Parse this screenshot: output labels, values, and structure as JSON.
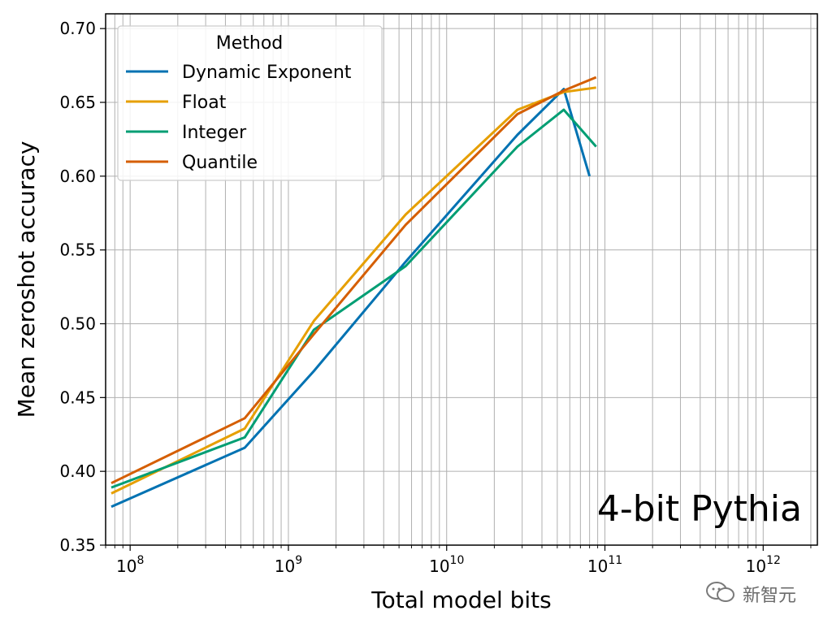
{
  "chart_data": {
    "type": "line",
    "xlabel": "Total model bits",
    "ylabel": "Mean zeroshot accuracy",
    "xscale": "log",
    "ylim": [
      0.35,
      0.71
    ],
    "yticks": [
      0.35,
      0.4,
      0.45,
      0.5,
      0.55,
      0.6,
      0.65,
      0.7
    ],
    "ytick_labels": [
      "0.35",
      "0.40",
      "0.45",
      "0.50",
      "0.55",
      "0.60",
      "0.65",
      "0.70"
    ],
    "xticks": [
      100000000,
      1000000000,
      10000000000,
      100000000000,
      1000000000000
    ],
    "xtick_labels": [
      {
        "base": "10",
        "exp": "8"
      },
      {
        "base": "10",
        "exp": "9"
      },
      {
        "base": "10",
        "exp": "10"
      },
      {
        "base": "10",
        "exp": "11"
      },
      {
        "base": "10",
        "exp": "12"
      }
    ],
    "grid": true,
    "legend": {
      "title": "Method",
      "placement": "top-left"
    },
    "annotation": "4-bit Pythia",
    "series": [
      {
        "name": "Dynamic Exponent",
        "color": "#0072b2",
        "x": [
          76000000,
          530000000,
          1450000000,
          5500000000,
          28000000000,
          55000000000,
          80000000000
        ],
        "y": [
          0.376,
          0.416,
          0.468,
          0.542,
          0.628,
          0.659,
          0.6
        ]
      },
      {
        "name": "Float",
        "color": "#e69f00",
        "x": [
          76000000,
          530000000,
          1450000000,
          5500000000,
          28000000000,
          55000000000,
          88000000000
        ],
        "y": [
          0.385,
          0.429,
          0.502,
          0.574,
          0.645,
          0.657,
          0.66
        ]
      },
      {
        "name": "Integer",
        "color": "#009e73",
        "x": [
          76000000,
          530000000,
          1450000000,
          5500000000,
          28000000000,
          55000000000,
          88000000000
        ],
        "y": [
          0.389,
          0.423,
          0.496,
          0.539,
          0.62,
          0.645,
          0.62
        ]
      },
      {
        "name": "Quantile",
        "color": "#d55e00",
        "x": [
          76000000,
          530000000,
          1450000000,
          5500000000,
          28000000000,
          55000000000,
          88000000000
        ],
        "y": [
          0.392,
          0.436,
          0.493,
          0.567,
          0.642,
          0.658,
          0.667
        ]
      }
    ]
  },
  "watermark": {
    "text": "新智元",
    "icon": "wechat-icon"
  }
}
